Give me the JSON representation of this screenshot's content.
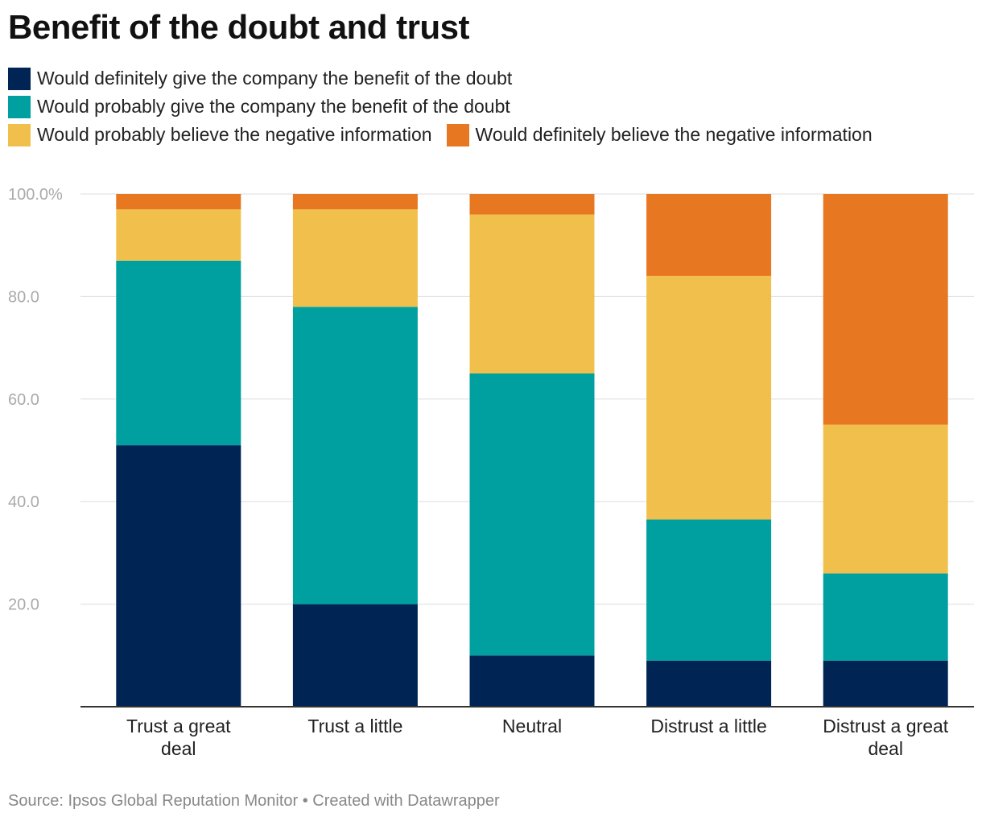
{
  "chart_data": {
    "type": "bar",
    "stacked": true,
    "title": "Benefit of the doubt and trust",
    "categories": [
      "Trust a great deal",
      "Trust a little",
      "Neutral",
      "Distrust a little",
      "Distrust a great deal"
    ],
    "series": [
      {
        "name": "Would definitely give the company the benefit of the doubt",
        "color": "#002554",
        "values": [
          51,
          20,
          10,
          9,
          9
        ]
      },
      {
        "name": "Would probably give the company the benefit of the doubt",
        "color": "#00a0a0",
        "values": [
          36,
          58,
          55,
          27.5,
          17
        ]
      },
      {
        "name": "Would probably believe the negative information",
        "color": "#f1c04c",
        "values": [
          10,
          19,
          31,
          47.5,
          29
        ]
      },
      {
        "name": "Would definitely believe the negative information",
        "color": "#e87722",
        "values": [
          3,
          3,
          4,
          16,
          45
        ]
      }
    ],
    "yticks": [
      "20.0",
      "40.0",
      "60.0",
      "80.0",
      "100.0%"
    ],
    "ylim": [
      0,
      100
    ],
    "xlabel": "",
    "ylabel": ""
  },
  "footer": {
    "source": "Source: Ipsos Global Reputation Monitor • Created with Datawrapper"
  }
}
